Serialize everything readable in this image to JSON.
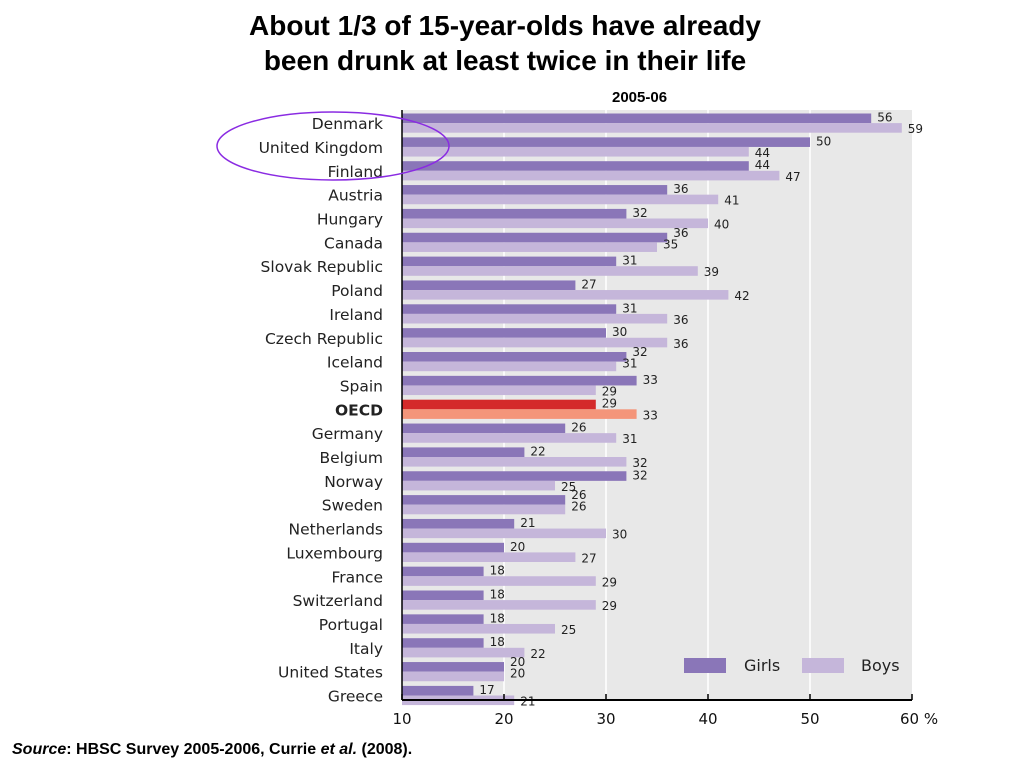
{
  "title_line1": "About 1/3 of 15-year-olds have already",
  "title_line2": "been drunk at least twice in their life",
  "subtitle": "2005-06",
  "source": {
    "label": "Source",
    "text1": ": HBSC Survey 2005-2006, Currie ",
    "etal": "et al.",
    "text2": " (2008)."
  },
  "colors": {
    "girls": "#8a76b8",
    "boys": "#c5b6da",
    "oecd_girls": "#d42a2a",
    "oecd_boys": "#f4957a",
    "plot_bg": "#e8e8e8",
    "highlight_ellipse": "#8a2be2"
  },
  "chart_data": {
    "type": "bar",
    "orientation": "horizontal",
    "categories": [
      "Denmark",
      "United Kingdom",
      "Finland",
      "Austria",
      "Hungary",
      "Canada",
      "Slovak Republic",
      "Poland",
      "Ireland",
      "Czech Republic",
      "Iceland",
      "Spain",
      "OECD",
      "Germany",
      "Belgium",
      "Norway",
      "Sweden",
      "Netherlands",
      "Luxembourg",
      "France",
      "Switzerland",
      "Portugal",
      "Italy",
      "United States",
      "Greece"
    ],
    "highlighted_category": "OECD",
    "circled_categories": [
      "Denmark",
      "United Kingdom",
      "Finland"
    ],
    "series": [
      {
        "name": "Girls",
        "values": [
          56,
          50,
          44,
          36,
          32,
          36,
          31,
          27,
          31,
          30,
          32,
          33,
          29,
          26,
          22,
          32,
          26,
          21,
          20,
          18,
          18,
          18,
          18,
          20,
          17
        ]
      },
      {
        "name": "Boys",
        "values": [
          59,
          44,
          47,
          41,
          40,
          35,
          39,
          42,
          36,
          36,
          31,
          29,
          33,
          31,
          32,
          25,
          26,
          30,
          27,
          29,
          29,
          25,
          22,
          20,
          21
        ]
      }
    ],
    "x_ticks": [
      "10",
      "20",
      "30",
      "40",
      "50",
      "60 %"
    ],
    "xlim": [
      10,
      60
    ],
    "grid": true,
    "legend_position": "bottom-right"
  }
}
